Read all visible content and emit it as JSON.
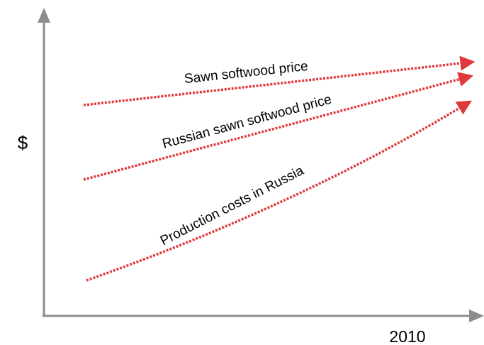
{
  "axes": {
    "y_label": "$",
    "x_label": "2010"
  },
  "lines": [
    {
      "label": "Sawn softwood price"
    },
    {
      "label": "Russian sawn softwood price"
    },
    {
      "label": "Production costs in Russia"
    }
  ]
}
